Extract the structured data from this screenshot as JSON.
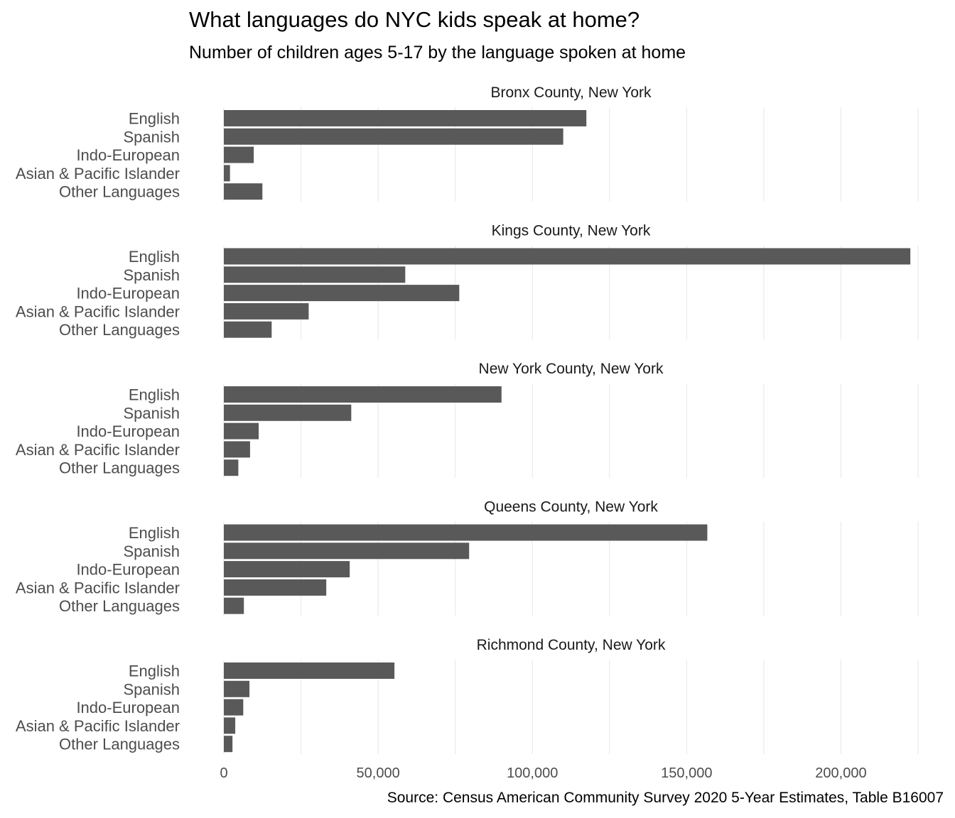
{
  "chart_data": {
    "type": "bar",
    "orientation": "horizontal",
    "title": "What languages do NYC kids speak at home?",
    "subtitle": "Number of children ages 5-17 by the language spoken at home",
    "caption": "Source: Census American Community Survey 2020 5-Year Estimates, Table B16007",
    "categories": [
      "English",
      "Spanish",
      "Indo-European",
      "Asian & Pacific Islander",
      "Other Languages"
    ],
    "xlim": [
      0,
      225000
    ],
    "x_ticks": [
      0,
      50000,
      100000,
      150000,
      200000
    ],
    "x_tick_labels": [
      "0",
      "50,000",
      "100,000",
      "150,000",
      "200,000"
    ],
    "grid": true,
    "panels": [
      {
        "title": "Bronx County, New York",
        "values": [
          117500,
          110000,
          9700,
          2000,
          12500
        ]
      },
      {
        "title": "Kings County, New York",
        "values": [
          222500,
          58800,
          76300,
          27500,
          15500
        ]
      },
      {
        "title": "New York County, New York",
        "values": [
          90000,
          41300,
          11300,
          8500,
          4700
        ]
      },
      {
        "title": "Queens County, New York",
        "values": [
          156700,
          79500,
          40800,
          33200,
          6500
        ]
      },
      {
        "title": "Richmond County, New York",
        "values": [
          55300,
          8300,
          6300,
          3700,
          2800
        ]
      }
    ]
  }
}
